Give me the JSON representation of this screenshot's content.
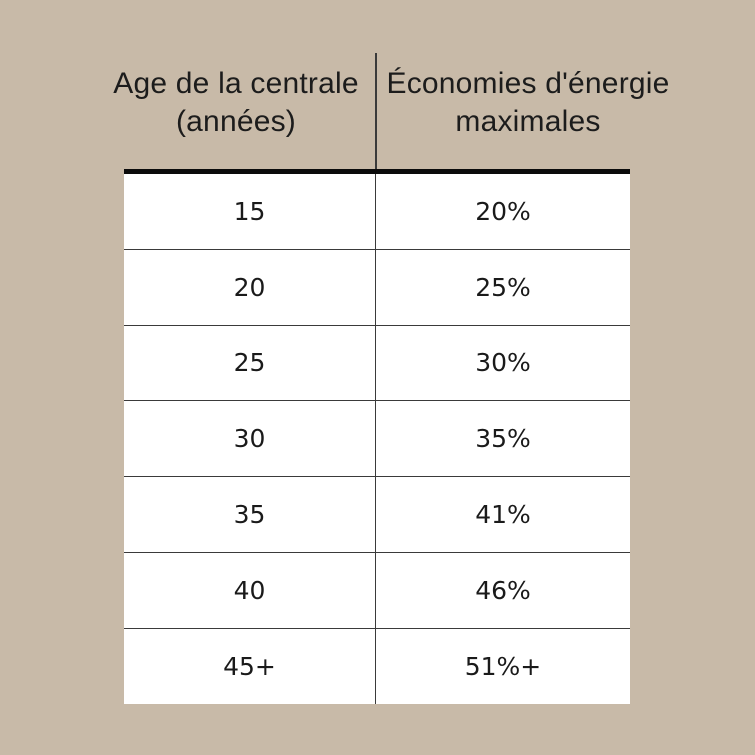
{
  "chart_data": {
    "type": "table",
    "columns": [
      {
        "line1": "Age de la centrale",
        "line2": "(années)"
      },
      {
        "line1": "Économies d'énergie",
        "line2": "maximales"
      }
    ],
    "rows": [
      [
        "15",
        "20%"
      ],
      [
        "20",
        "25%"
      ],
      [
        "25",
        "30%"
      ],
      [
        "30",
        "35%"
      ],
      [
        "35",
        "41%"
      ],
      [
        "40",
        "46%"
      ],
      [
        "45+",
        "51%+"
      ]
    ]
  }
}
